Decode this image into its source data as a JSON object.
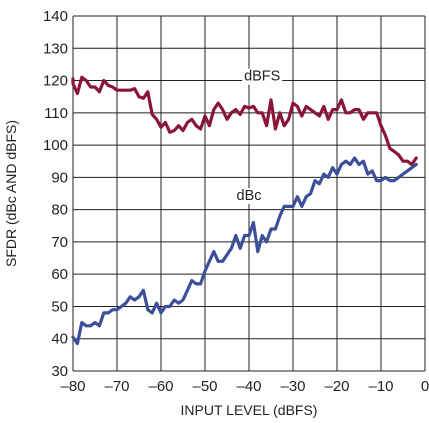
{
  "chart_data": {
    "type": "line",
    "title": "",
    "xlabel": "INPUT LEVEL (dBFS)",
    "ylabel": "SFDR (dBc AND dBFS)",
    "xlim": [
      -80,
      0
    ],
    "ylim": [
      30,
      140
    ],
    "xticks": [
      -80,
      -70,
      -60,
      -50,
      -40,
      -30,
      -20,
      -10,
      0
    ],
    "xtick_labels": [
      "–80",
      "–70",
      "–60",
      "–50",
      "–40",
      "–30",
      "–20",
      "–10",
      "0"
    ],
    "yticks": [
      30,
      40,
      50,
      60,
      70,
      80,
      90,
      100,
      110,
      120,
      130,
      140
    ],
    "ytick_labels": [
      "30",
      "40",
      "50",
      "60",
      "70",
      "80",
      "90",
      "100",
      "110",
      "120",
      "130",
      "140"
    ],
    "grid": true,
    "legend": "none (series labelled inline)",
    "colors": {
      "dBFS": "#8b1538",
      "dBc": "#3b4f9a",
      "grid": "#231f20"
    },
    "series": [
      {
        "name": "dBFS",
        "label_at": [
          -37,
          121.5
        ],
        "x": [
          -81,
          -80,
          -79,
          -78,
          -77,
          -76,
          -75,
          -74,
          -73,
          -72,
          -71,
          -70,
          -69,
          -68,
          -67,
          -66,
          -65,
          -64,
          -63,
          -62,
          -61,
          -60,
          -59,
          -58,
          -57,
          -56,
          -55,
          -54,
          -53,
          -52,
          -51,
          -50,
          -49,
          -48,
          -47,
          -46,
          -45,
          -44,
          -43,
          -42,
          -41,
          -40,
          -39,
          -38,
          -37,
          -36,
          -35,
          -34,
          -33,
          -32,
          -31,
          -30,
          -29,
          -28,
          -27,
          -26,
          -25,
          -24,
          -23,
          -22,
          -21,
          -20,
          -19,
          -18,
          -17,
          -16,
          -15,
          -14,
          -13,
          -12,
          -11,
          -10,
          -9,
          -8,
          -7,
          -6,
          -5,
          -4,
          -3,
          -2
        ],
        "y": [
          120.5,
          119,
          116,
          121,
          120,
          118,
          118,
          116.5,
          120,
          118.5,
          118,
          117,
          117,
          117,
          117,
          117.5,
          115,
          114.5,
          116.5,
          109.5,
          108,
          105.5,
          107,
          104,
          104.5,
          106,
          104.5,
          107,
          108,
          106,
          105,
          109,
          106,
          111,
          113,
          111,
          108,
          110,
          111,
          109.5,
          112,
          111.5,
          112,
          110,
          110,
          106,
          114,
          105,
          110,
          106,
          108,
          113,
          112,
          109,
          112,
          111,
          110,
          109,
          112,
          108,
          111,
          111,
          114,
          110,
          110,
          111,
          111,
          108,
          110,
          110,
          110,
          106,
          103,
          99,
          98,
          97,
          95,
          95,
          94,
          96
        ]
      },
      {
        "name": "dBc",
        "label_at": [
          -40,
          84.5
        ],
        "x": [
          -81,
          -80,
          -79,
          -78,
          -77,
          -76,
          -75,
          -74,
          -73,
          -72,
          -71,
          -70,
          -69,
          -68,
          -67,
          -66,
          -65,
          -64,
          -63,
          -62,
          -61,
          -60,
          -59,
          -58,
          -57,
          -56,
          -55,
          -54,
          -53,
          -52,
          -51,
          -50,
          -49,
          -48,
          -47,
          -46,
          -45,
          -44,
          -43,
          -42,
          -41,
          -40,
          -39,
          -38,
          -37,
          -36,
          -35,
          -34,
          -33,
          -32,
          -31,
          -30,
          -29,
          -28,
          -27,
          -26,
          -25,
          -24,
          -23,
          -22,
          -21,
          -20,
          -19,
          -18,
          -17,
          -16,
          -15,
          -14,
          -13,
          -12,
          -11,
          -10,
          -9,
          -8,
          -7,
          -6,
          -5,
          -4,
          -3,
          -2
        ],
        "y": [
          40.5,
          40.5,
          38.5,
          45,
          44,
          44,
          45,
          44,
          48,
          48,
          49,
          49,
          50,
          51,
          53,
          52,
          53,
          55,
          49,
          48,
          51,
          48,
          50,
          50,
          52,
          51,
          52,
          55,
          58,
          57,
          57,
          61,
          64,
          67,
          64,
          64,
          66,
          68,
          72,
          68,
          72,
          72,
          76,
          67,
          72,
          70,
          74,
          74,
          78,
          81,
          81,
          81,
          84,
          81,
          84,
          85,
          89,
          88,
          91,
          90,
          93,
          91,
          94,
          95,
          94,
          96,
          94,
          95,
          91,
          92,
          89,
          89,
          90,
          89,
          89,
          90,
          91,
          92,
          93,
          94
        ]
      }
    ]
  }
}
